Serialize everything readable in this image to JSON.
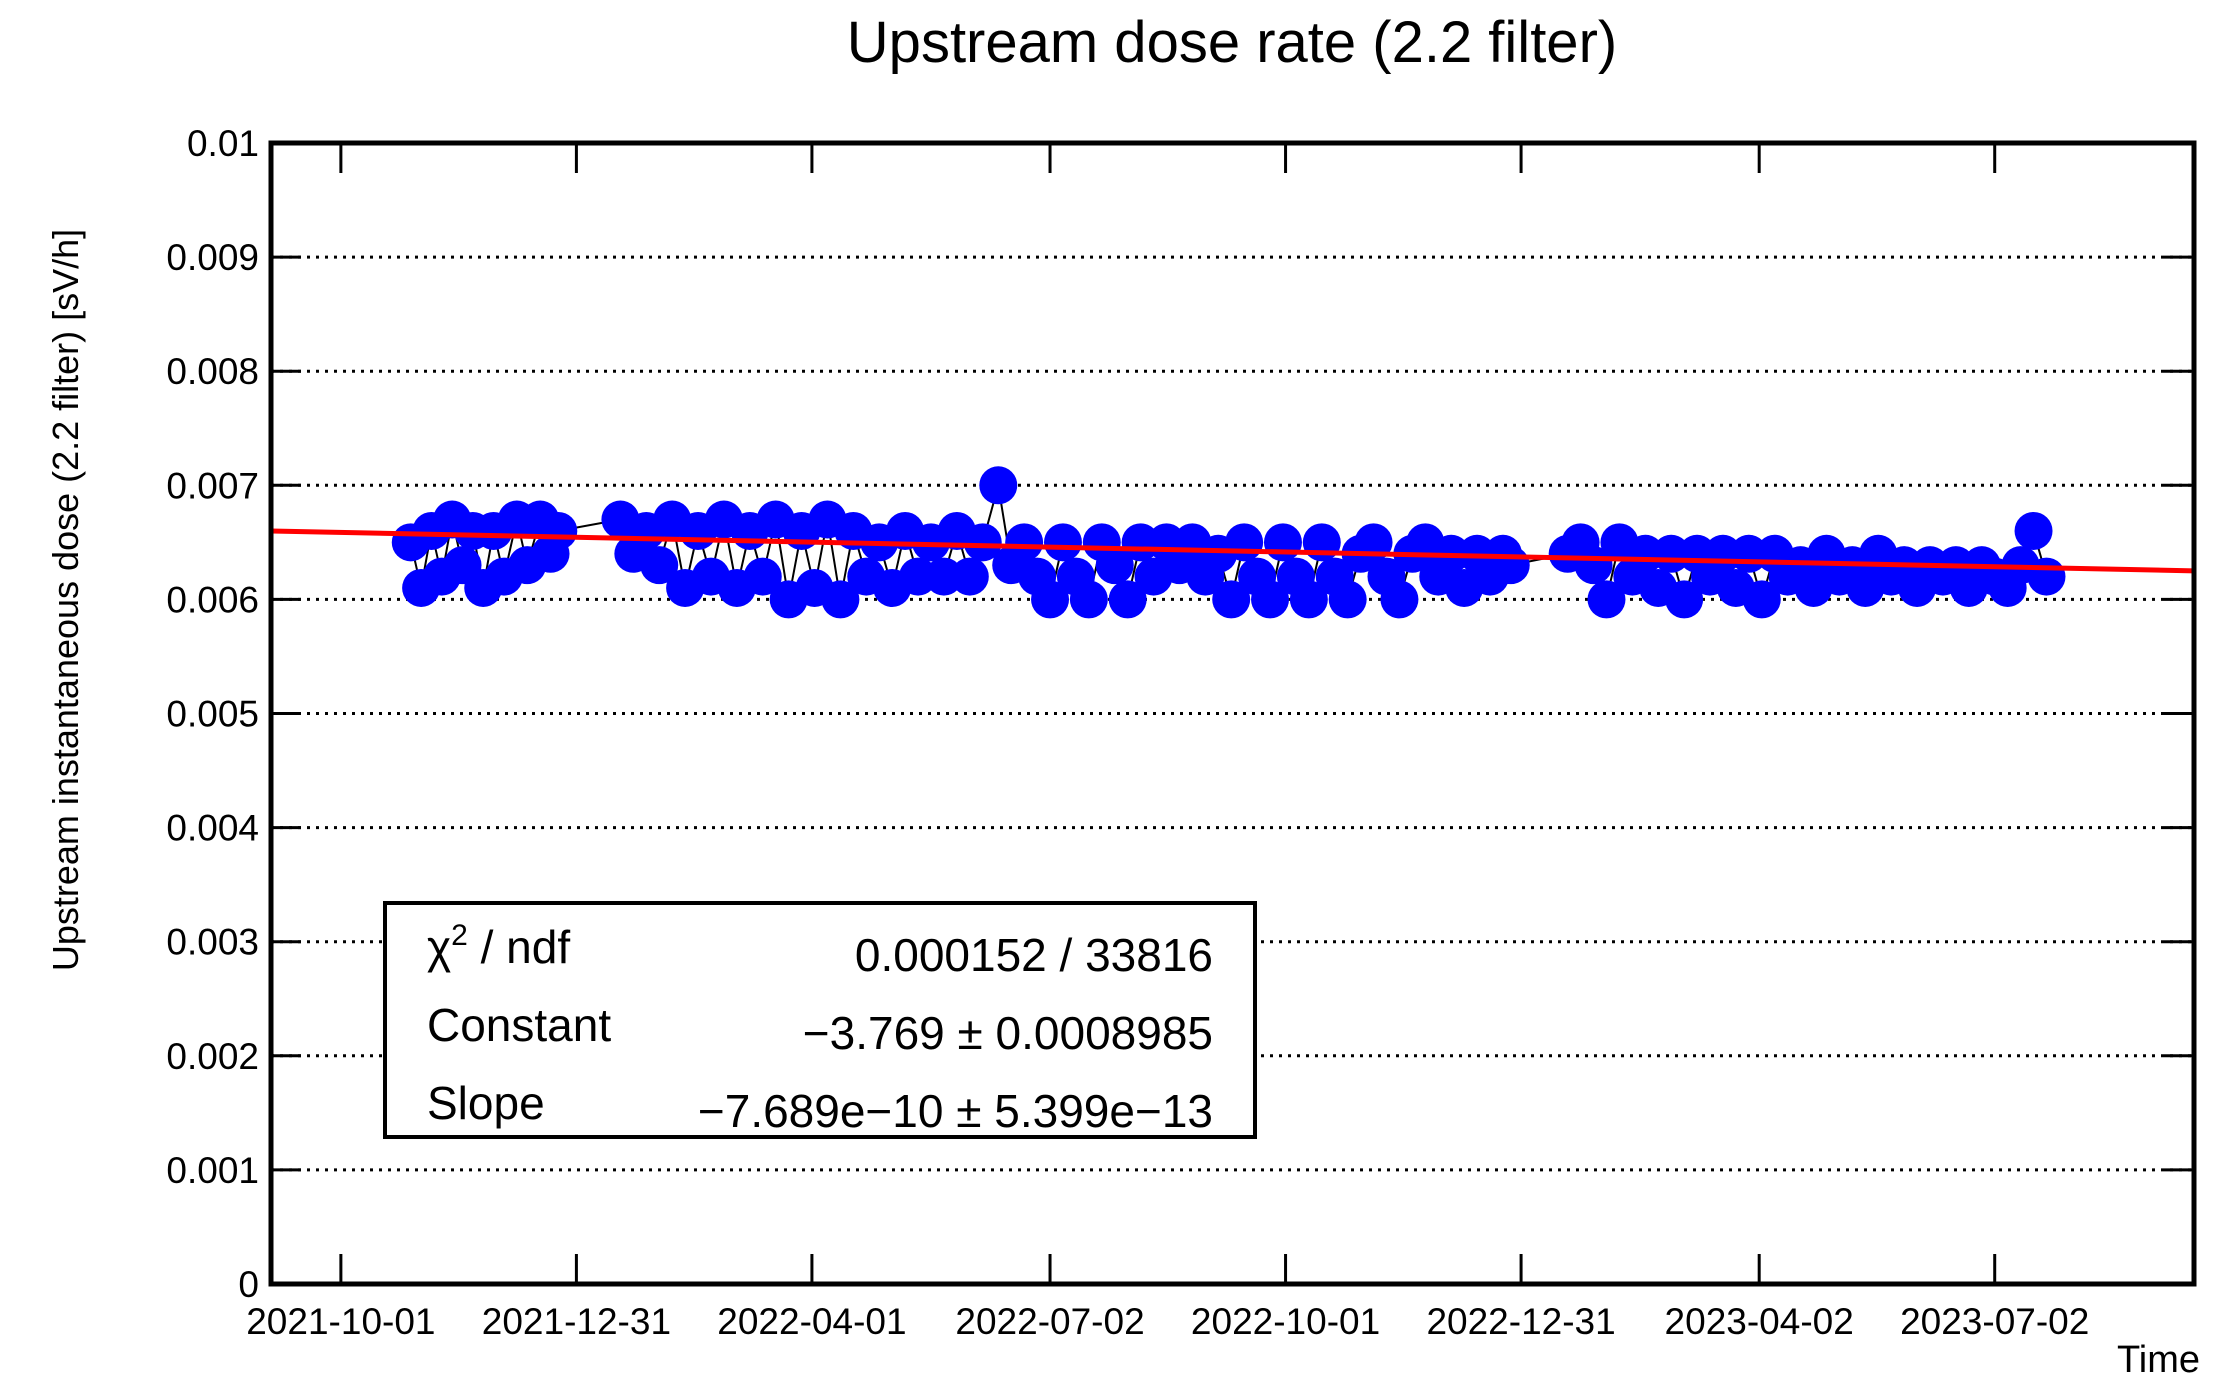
{
  "chart_data": {
    "type": "scatter",
    "title": "Upstream dose rate (2.2 filter)",
    "x_label": "Time",
    "y_label": "Upstream instantaneous dose (2.2 filter) [sV/h]",
    "xlim": [
      "2021-09-04",
      "2023-09-17"
    ],
    "xticks": [
      "2021-10-01",
      "2021-12-31",
      "2022-04-01",
      "2022-07-02",
      "2022-10-01",
      "2022-12-31",
      "2023-04-02",
      "2023-07-02"
    ],
    "ylim": [
      0,
      0.01
    ],
    "yticks": [
      0,
      0.001,
      0.002,
      0.003,
      0.004,
      0.005,
      0.006,
      0.007,
      0.008,
      0.009,
      0.01
    ],
    "grid": "y",
    "series": [
      {
        "color": "#0000ff",
        "x": [
          "2021-10-28",
          "2021-11-01",
          "2021-11-05",
          "2021-11-09",
          "2021-11-13",
          "2021-11-17",
          "2021-11-21",
          "2021-11-25",
          "2021-11-29",
          "2021-12-03",
          "2021-12-08",
          "2021-12-12",
          "2021-12-17",
          "2021-12-21",
          "2021-12-24",
          "2022-01-17",
          "2022-01-22",
          "2022-01-27",
          "2022-02-01",
          "2022-02-06",
          "2022-02-11",
          "2022-02-16",
          "2022-02-21",
          "2022-02-26",
          "2022-03-03",
          "2022-03-08",
          "2022-03-13",
          "2022-03-18",
          "2022-03-23",
          "2022-03-28",
          "2022-04-02",
          "2022-04-07",
          "2022-04-12",
          "2022-04-17",
          "2022-04-22",
          "2022-04-27",
          "2022-05-02",
          "2022-05-07",
          "2022-05-12",
          "2022-05-17",
          "2022-05-22",
          "2022-05-27",
          "2022-06-01",
          "2022-06-06",
          "2022-06-12",
          "2022-06-17",
          "2022-06-22",
          "2022-06-27",
          "2022-07-02",
          "2022-07-07",
          "2022-07-12",
          "2022-07-17",
          "2022-07-22",
          "2022-07-27",
          "2022-08-01",
          "2022-08-06",
          "2022-08-11",
          "2022-08-16",
          "2022-08-21",
          "2022-08-26",
          "2022-08-31",
          "2022-09-05",
          "2022-09-10",
          "2022-09-15",
          "2022-09-20",
          "2022-09-25",
          "2022-09-30",
          "2022-10-05",
          "2022-10-10",
          "2022-10-15",
          "2022-10-20",
          "2022-10-25",
          "2022-10-30",
          "2022-11-04",
          "2022-11-09",
          "2022-11-14",
          "2022-11-19",
          "2022-11-24",
          "2022-11-29",
          "2022-12-04",
          "2022-12-09",
          "2022-12-14",
          "2022-12-19",
          "2022-12-24",
          "2022-12-27",
          "2023-01-18",
          "2023-01-23",
          "2023-01-28",
          "2023-02-02",
          "2023-02-07",
          "2023-02-12",
          "2023-02-17",
          "2023-02-22",
          "2023-02-27",
          "2023-03-04",
          "2023-03-09",
          "2023-03-14",
          "2023-03-19",
          "2023-03-24",
          "2023-03-29",
          "2023-04-03",
          "2023-04-08",
          "2023-04-13",
          "2023-04-18",
          "2023-04-23",
          "2023-04-28",
          "2023-05-03",
          "2023-05-08",
          "2023-05-13",
          "2023-05-18",
          "2023-05-23",
          "2023-05-28",
          "2023-06-02",
          "2023-06-07",
          "2023-06-12",
          "2023-06-17",
          "2023-06-22",
          "2023-06-27",
          "2023-07-02",
          "2023-07-07",
          "2023-07-12",
          "2023-07-17",
          "2023-07-22"
        ],
        "values": [
          0.0065,
          0.0061,
          0.0066,
          0.0062,
          0.0067,
          0.0063,
          0.0066,
          0.0061,
          0.0066,
          0.0062,
          0.0067,
          0.0063,
          0.0067,
          0.0064,
          0.0066,
          0.0067,
          0.0064,
          0.0066,
          0.0063,
          0.0067,
          0.0061,
          0.0066,
          0.0062,
          0.0067,
          0.0061,
          0.0066,
          0.0062,
          0.0067,
          0.006,
          0.0066,
          0.0061,
          0.0067,
          0.006,
          0.0066,
          0.0062,
          0.0065,
          0.0061,
          0.0066,
          0.0062,
          0.0065,
          0.0062,
          0.0066,
          0.0062,
          0.0065,
          0.007,
          0.0063,
          0.0065,
          0.0062,
          0.006,
          0.0065,
          0.0062,
          0.006,
          0.0065,
          0.0063,
          0.006,
          0.0065,
          0.0062,
          0.0065,
          0.0063,
          0.0065,
          0.0062,
          0.0064,
          0.006,
          0.0065,
          0.0062,
          0.006,
          0.0065,
          0.0062,
          0.006,
          0.0065,
          0.0062,
          0.006,
          0.0064,
          0.0065,
          0.0062,
          0.006,
          0.0064,
          0.0065,
          0.0062,
          0.0064,
          0.0061,
          0.0064,
          0.0062,
          0.0064,
          0.0063,
          0.0064,
          0.0065,
          0.0063,
          0.006,
          0.0065,
          0.0062,
          0.0064,
          0.0061,
          0.0064,
          0.006,
          0.0064,
          0.0062,
          0.0064,
          0.0061,
          0.0064,
          0.006,
          0.0064,
          0.0062,
          0.0063,
          0.0061,
          0.0064,
          0.0062,
          0.0063,
          0.0061,
          0.0064,
          0.0062,
          0.0063,
          0.0061,
          0.0063,
          0.0062,
          0.0063,
          0.0061,
          0.0063,
          0.0062,
          0.0061,
          0.0063,
          0.0066,
          0.0062
        ]
      }
    ],
    "fit": {
      "color": "#ff0000",
      "x": [
        "2021-09-04",
        "2023-09-17"
      ],
      "values": [
        0.0066,
        0.00625
      ]
    },
    "stats_box": {
      "rows": [
        {
          "label": "χ",
          "sup": "2",
          "label_rest": " / ndf",
          "value": "0.000152 / 33816"
        },
        {
          "label": "Constant",
          "value": "−3.769 ± 0.0008985"
        },
        {
          "label": "Slope",
          "value": "−7.689e−10 ± 5.399e−13"
        }
      ]
    }
  }
}
